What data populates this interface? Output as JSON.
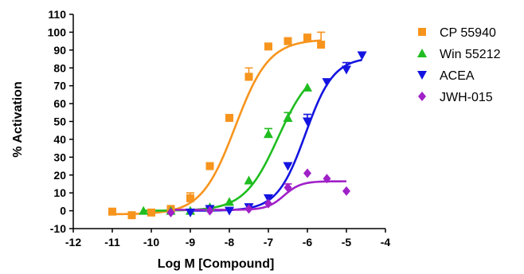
{
  "chart_data": {
    "type": "scatter",
    "title": "",
    "xlabel": "Log M [Compound]",
    "ylabel": "% Activation",
    "xlim": [
      -12,
      -4
    ],
    "ylim": [
      -10,
      110
    ],
    "x_ticks": [
      -12,
      -11,
      -10,
      -9,
      -8,
      -7,
      -6,
      -5,
      -4
    ],
    "y_ticks": [
      -10,
      0,
      10,
      20,
      30,
      40,
      50,
      60,
      70,
      80,
      90,
      100,
      110
    ],
    "x_tick_labels": [
      "-12",
      "-11",
      "-10",
      "-9",
      "-8",
      "-7",
      "-6",
      "-5",
      "-4"
    ],
    "y_tick_labels": [
      "-10",
      "0",
      "10",
      "20",
      "30",
      "40",
      "50",
      "60",
      "70",
      "80",
      "90",
      "100",
      "110"
    ],
    "grid": false,
    "legend": "right",
    "series": [
      {
        "name": "CP 55940",
        "color": "#f7941d",
        "marker": "square",
        "x": [
          -11,
          -10.5,
          -10,
          -9.5,
          -9,
          -8.5,
          -8,
          -7.5,
          -7,
          -6.5,
          -6,
          -5.65
        ],
        "y": [
          -0.5,
          -2.5,
          -1,
          1,
          7,
          25,
          52,
          75,
          92,
          95,
          97,
          93
        ],
        "err": [
          0,
          0,
          0,
          0,
          3,
          0,
          0,
          5,
          0,
          0,
          0,
          7
        ],
        "fit": {
          "bottom": -2,
          "top": 96,
          "logec50": -7.85,
          "hill": 1.0,
          "x_range": [
            -11,
            -5.65
          ]
        }
      },
      {
        "name": "Win 55212",
        "color": "#1fbd1f",
        "marker": "triangle-up",
        "x": [
          -10.2,
          -9.5,
          -9,
          -8.5,
          -8,
          -7.5,
          -7,
          -6.5,
          -6
        ],
        "y": [
          0,
          0,
          0,
          2,
          5,
          17,
          43,
          52,
          69
        ],
        "err": [
          0,
          0,
          0,
          0,
          0,
          0,
          3,
          3,
          0
        ],
        "fit": {
          "bottom": 0,
          "top": 82,
          "logec50": -6.75,
          "hill": 1.0,
          "x_range": [
            -10.2,
            -6
          ]
        }
      },
      {
        "name": "ACEA",
        "color": "#1414e0",
        "marker": "triangle-down",
        "x": [
          -9,
          -8.5,
          -8,
          -7.5,
          -7,
          -6.5,
          -6,
          -5.5,
          -5,
          -4.6
        ],
        "y": [
          -1,
          1,
          0,
          2,
          7,
          25,
          50,
          72,
          79,
          87
        ],
        "err": [
          0,
          0,
          0,
          0,
          0,
          0,
          4,
          0,
          4,
          0
        ],
        "fit": {
          "bottom": 0,
          "top": 86,
          "logec50": -6.05,
          "hill": 1.2,
          "x_range": [
            -9,
            -4.6
          ]
        }
      },
      {
        "name": "JWH-015",
        "color": "#a020c8",
        "marker": "diamond",
        "x": [
          -9.5,
          -8.5,
          -7.5,
          -7,
          -6.5,
          -6,
          -5.5,
          -5
        ],
        "y": [
          -1,
          0,
          1,
          4,
          13,
          21,
          18,
          11
        ],
        "err": [
          0,
          2,
          0,
          0,
          2,
          0,
          0,
          0
        ],
        "fit": {
          "bottom": 0.5,
          "top": 16.5,
          "logec50": -6.6,
          "hill": 2.0,
          "x_range": [
            -9.5,
            -5
          ]
        }
      }
    ]
  }
}
